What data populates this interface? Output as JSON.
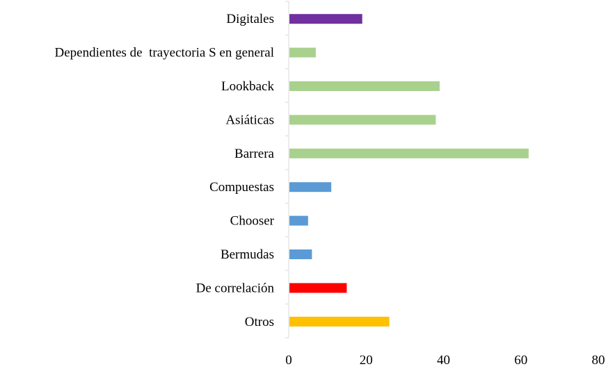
{
  "chart_data": {
    "type": "bar",
    "orientation": "horizontal",
    "title": "",
    "xlabel": "",
    "ylabel": "",
    "xlim": [
      0,
      80
    ],
    "x_ticks": [
      0,
      20,
      40,
      60,
      80
    ],
    "grid": false,
    "legend": "none",
    "categories": [
      "Digitales",
      "Dependientes de  trayectoria S en general",
      "Lookback",
      "Asiáticas",
      "Barrera",
      "Compuestas",
      "Chooser",
      "Bermudas",
      "De correlación",
      "Otros"
    ],
    "values": [
      19,
      7,
      39,
      38,
      62,
      11,
      5,
      6,
      15,
      26
    ],
    "colors": [
      "#7030a0",
      "#a9d18e",
      "#a9d18e",
      "#a9d18e",
      "#a9d18e",
      "#5b9bd5",
      "#5b9bd5",
      "#5b9bd5",
      "#ff0000",
      "#ffc000"
    ],
    "axis_color": "#d9d9d9"
  }
}
